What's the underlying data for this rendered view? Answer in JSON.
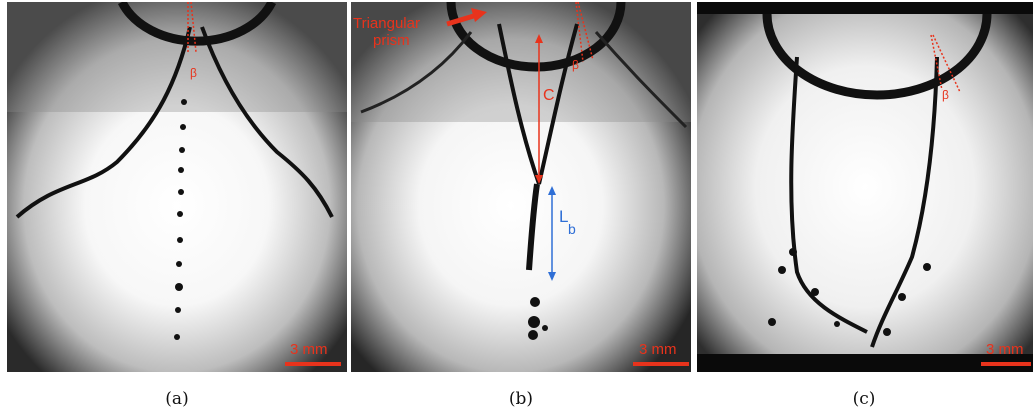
{
  "panels": [
    {
      "caption": "(a)",
      "scale_bar": "3 mm",
      "angle_label": "β"
    },
    {
      "caption": "(b)",
      "scale_bar": "3 mm",
      "angle_label": "β",
      "prism_label_line1": "Triangular",
      "prism_label_line2": "prism",
      "length_label_c": "C",
      "length_label_lb": "L",
      "length_label_lb_sub": "b"
    },
    {
      "caption": "(c)",
      "scale_bar": "3 mm",
      "angle_label": "β"
    }
  ],
  "colors": {
    "annotation_red": "#e8331c",
    "annotation_blue": "#2f6fd6"
  }
}
